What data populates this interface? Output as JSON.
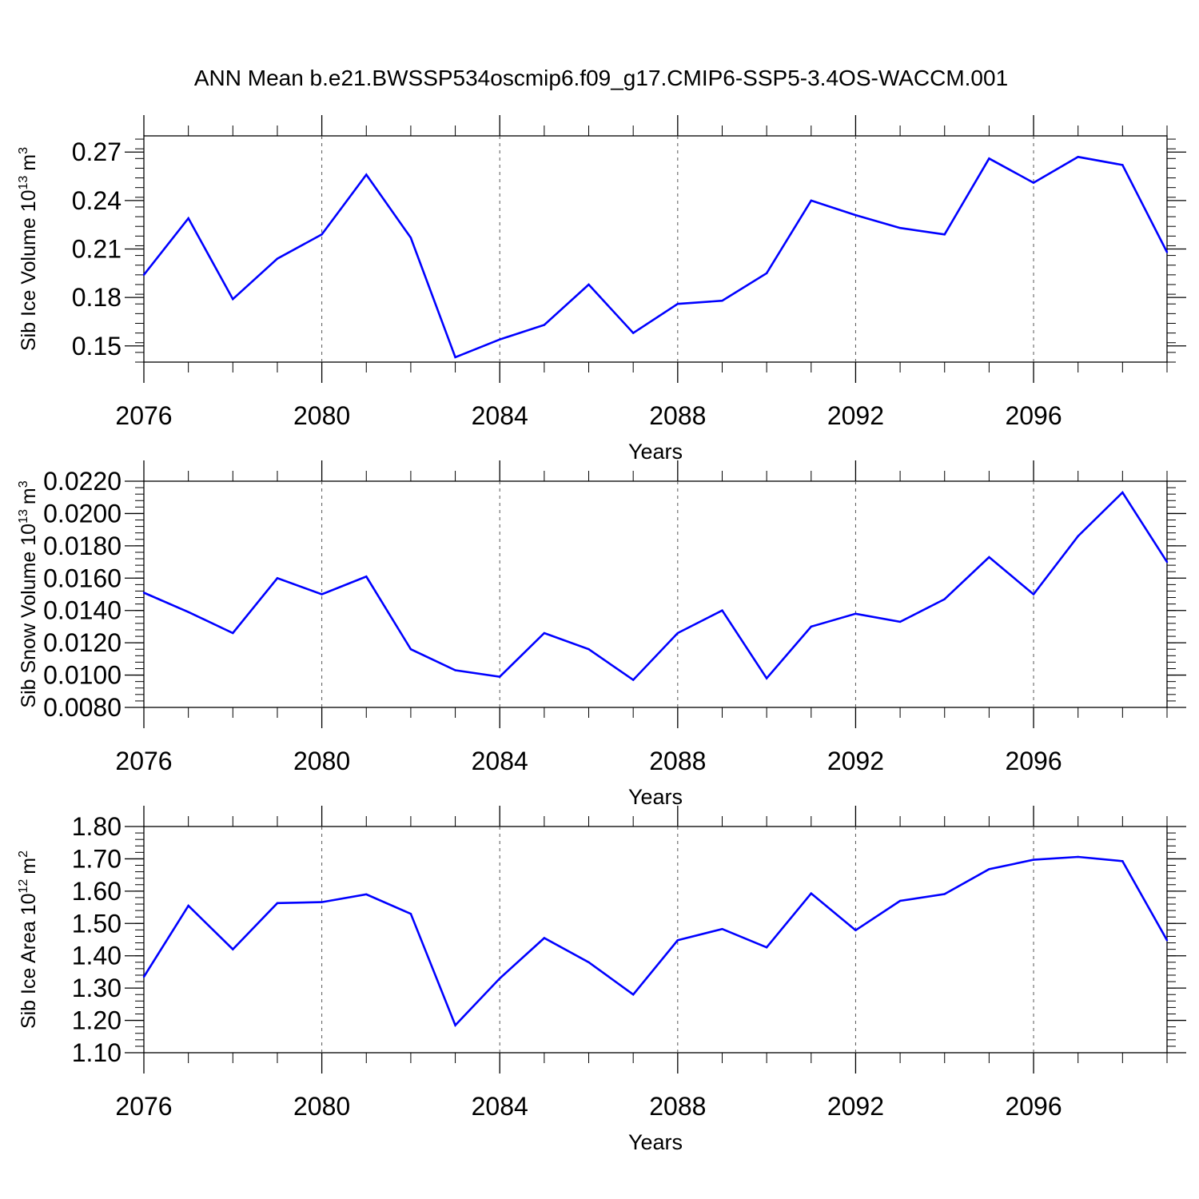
{
  "title": "ANN Mean b.e21.BWSSP534oscmip6.f09_g17.CMIP6-SSP5-3.4OS-WACCM.001",
  "line_color": "#0000ff",
  "chart_data": [
    {
      "type": "line",
      "ylabel_main": "Sib Ice Volume 10",
      "ylabel_exp": "13",
      "ylabel_unit": "m",
      "ylabel_unit_exp": "3",
      "xlabel": "Years",
      "xlim": [
        2076,
        2099
      ],
      "ylim": [
        0.14,
        0.28
      ],
      "yticks": [
        0.15,
        0.18,
        0.21,
        0.24,
        0.27
      ],
      "ytick_labels": [
        "0.15",
        "0.18",
        "0.21",
        "0.24",
        "0.27"
      ],
      "xticks": [
        2076,
        2080,
        2084,
        2088,
        2092,
        2096
      ],
      "xtick_labels": [
        "2076",
        "2080",
        "2084",
        "2088",
        "2092",
        "2096"
      ],
      "x": [
        2076,
        2077,
        2078,
        2079,
        2080,
        2081,
        2082,
        2083,
        2084,
        2085,
        2086,
        2087,
        2088,
        2089,
        2090,
        2091,
        2092,
        2093,
        2094,
        2095,
        2096,
        2097,
        2098,
        2099
      ],
      "values": [
        0.194,
        0.229,
        0.179,
        0.204,
        0.219,
        0.256,
        0.217,
        0.143,
        0.154,
        0.163,
        0.188,
        0.158,
        0.176,
        0.178,
        0.195,
        0.24,
        0.231,
        0.223,
        0.219,
        0.266,
        0.251,
        0.267,
        0.262,
        0.208
      ]
    },
    {
      "type": "line",
      "ylabel_main": "Sib Snow Volume 10",
      "ylabel_exp": "13",
      "ylabel_unit": "m",
      "ylabel_unit_exp": "3",
      "xlabel": "Years",
      "xlim": [
        2076,
        2099
      ],
      "ylim": [
        0.008,
        0.022
      ],
      "yticks": [
        0.008,
        0.01,
        0.012,
        0.014,
        0.016,
        0.018,
        0.02,
        0.022
      ],
      "ytick_labels": [
        "0.0080",
        "0.0100",
        "0.0120",
        "0.0140",
        "0.0160",
        "0.0180",
        "0.0200",
        "0.0220"
      ],
      "xticks": [
        2076,
        2080,
        2084,
        2088,
        2092,
        2096
      ],
      "xtick_labels": [
        "2076",
        "2080",
        "2084",
        "2088",
        "2092",
        "2096"
      ],
      "x": [
        2076,
        2077,
        2078,
        2079,
        2080,
        2081,
        2082,
        2083,
        2084,
        2085,
        2086,
        2087,
        2088,
        2089,
        2090,
        2091,
        2092,
        2093,
        2094,
        2095,
        2096,
        2097,
        2098,
        2099
      ],
      "values": [
        0.0151,
        0.0139,
        0.0126,
        0.016,
        0.015,
        0.0161,
        0.0116,
        0.0103,
        0.0099,
        0.0126,
        0.0116,
        0.0097,
        0.0126,
        0.014,
        0.0098,
        0.013,
        0.0138,
        0.0133,
        0.0147,
        0.0173,
        0.015,
        0.0186,
        0.0213,
        0.017
      ]
    },
    {
      "type": "line",
      "ylabel_main": "Sib Ice Area 10",
      "ylabel_exp": "12",
      "ylabel_unit": "m",
      "ylabel_unit_exp": "2",
      "xlabel": "Years",
      "xlim": [
        2076,
        2099
      ],
      "ylim": [
        1.1,
        1.8
      ],
      "yticks": [
        1.1,
        1.2,
        1.3,
        1.4,
        1.5,
        1.6,
        1.7,
        1.8
      ],
      "ytick_labels": [
        "1.10",
        "1.20",
        "1.30",
        "1.40",
        "1.50",
        "1.60",
        "1.70",
        "1.80"
      ],
      "xticks": [
        2076,
        2080,
        2084,
        2088,
        2092,
        2096
      ],
      "xtick_labels": [
        "2076",
        "2080",
        "2084",
        "2088",
        "2092",
        "2096"
      ],
      "x": [
        2076,
        2077,
        2078,
        2079,
        2080,
        2081,
        2082,
        2083,
        2084,
        2085,
        2086,
        2087,
        2088,
        2089,
        2090,
        2091,
        2092,
        2093,
        2094,
        2095,
        2096,
        2097,
        2098,
        2099
      ],
      "values": [
        1.335,
        1.555,
        1.42,
        1.563,
        1.566,
        1.59,
        1.53,
        1.185,
        1.33,
        1.455,
        1.38,
        1.28,
        1.448,
        1.483,
        1.426,
        1.593,
        1.479,
        1.57,
        1.591,
        1.668,
        1.697,
        1.706,
        1.693,
        1.448
      ]
    }
  ]
}
